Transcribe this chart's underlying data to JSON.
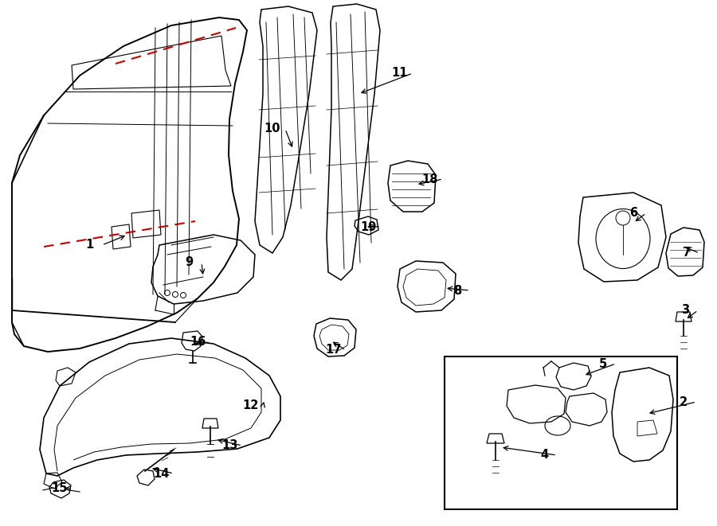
{
  "bg_color": "#ffffff",
  "line_color": "#000000",
  "red_dash_color": "#cc0000",
  "fig_width": 9.0,
  "fig_height": 6.61,
  "dpi": 100
}
